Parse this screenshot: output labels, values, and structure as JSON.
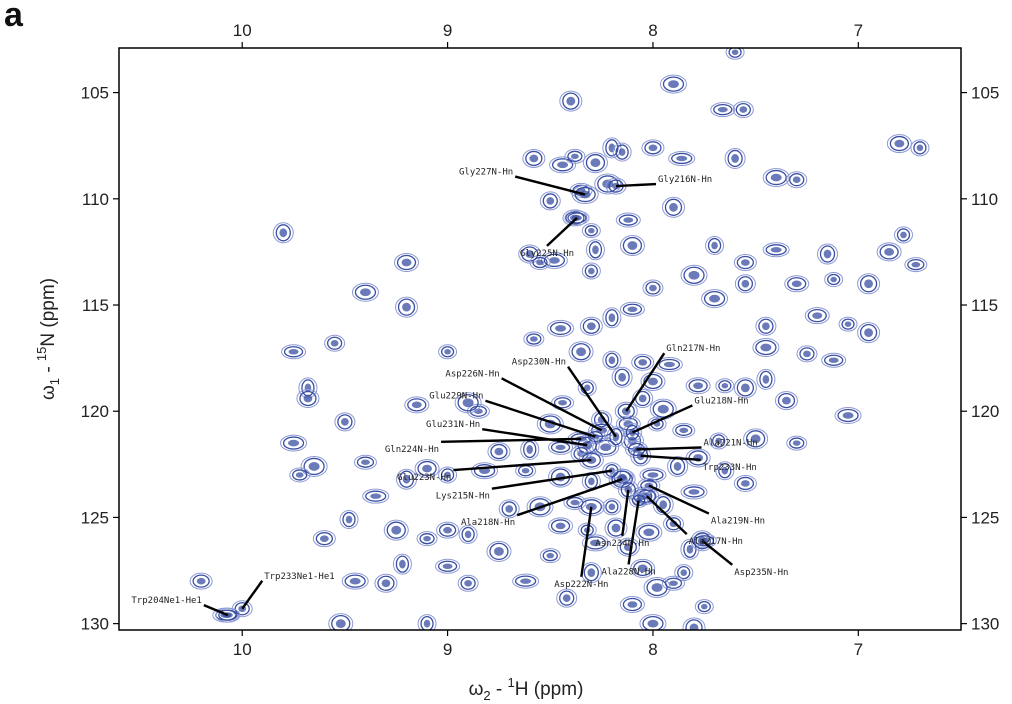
{
  "panel_label": "a",
  "chart_data": {
    "type": "scatter",
    "subtype": "2D NMR contour spectrum (1H-15N HSQC)",
    "x_axis": {
      "label_main": "ω",
      "label_sub": "2",
      "label_mid": " - ",
      "label_sup": "1",
      "label_end": "H  (ppm)",
      "range": [
        10.6,
        6.5
      ],
      "ticks": [
        10,
        9,
        8,
        7
      ],
      "tick_labels": [
        "10",
        "9",
        "8",
        "7"
      ]
    },
    "y_axis": {
      "label_main": "ω",
      "label_sub": "1",
      "label_mid": " - ",
      "label_sup": "15",
      "label_end": "N  (ppm)",
      "range": [
        102.9,
        130.3
      ],
      "ticks": [
        105,
        110,
        115,
        120,
        125,
        130
      ],
      "tick_labels": [
        "105",
        "110",
        "115",
        "120",
        "125",
        "130"
      ]
    },
    "colors": {
      "contour": "#3a4fa3",
      "contour_light": "#8d9ad3",
      "axis": "#000000",
      "leader": "#000000"
    },
    "labeled_peaks": [
      {
        "label": "Gly227N-Hn",
        "x": 8.33,
        "y": 109.8
      },
      {
        "label": "Gly216N-Hn",
        "x": 8.18,
        "y": 109.4
      },
      {
        "label": "Gly225N-Hn",
        "x": 8.37,
        "y": 110.9
      },
      {
        "label": "Asp230N-Hn",
        "x": 8.18,
        "y": 121.2
      },
      {
        "label": "Gln217N-Hn",
        "x": 8.13,
        "y": 120.0
      },
      {
        "label": "Asp226N-Hn",
        "x": 8.25,
        "y": 120.9
      },
      {
        "label": "Glu229N-Hn",
        "x": 8.28,
        "y": 121.2
      },
      {
        "label": "Glu231N-Hn",
        "x": 8.32,
        "y": 121.6
      },
      {
        "label": "Glu218N-Hn",
        "x": 8.1,
        "y": 121.0
      },
      {
        "label": "Ala221N-Hn",
        "x": 8.08,
        "y": 121.8
      },
      {
        "label": "Gln224N-Hn",
        "x": 8.35,
        "y": 121.3
      },
      {
        "label": "Trp233N-Hn",
        "x": 8.06,
        "y": 122.1
      },
      {
        "label": "Glu223N-Hn",
        "x": 8.3,
        "y": 122.3
      },
      {
        "label": "Lys215N-Hn",
        "x": 8.2,
        "y": 122.8
      },
      {
        "label": "Ala219N-Hn",
        "x": 8.02,
        "y": 123.5
      },
      {
        "label": "Ala218N-Hn",
        "x": 8.15,
        "y": 123.2
      },
      {
        "label": "Asn234N-Hn",
        "x": 8.12,
        "y": 123.7
      },
      {
        "label": "Ala217N-Hn",
        "x": 8.03,
        "y": 124.0
      },
      {
        "label": "Ala228N-Hn",
        "x": 8.07,
        "y": 124.2
      },
      {
        "label": "Asp235N-Hn",
        "x": 7.76,
        "y": 126.1
      },
      {
        "label": "Asp222N-Hn",
        "x": 8.3,
        "y": 124.5
      },
      {
        "label": "Trp233Ne1-He1",
        "x": 10.0,
        "y": 129.3
      },
      {
        "label": "Trp204Ne1-He1",
        "x": 10.07,
        "y": 129.6
      }
    ],
    "peaks": [
      [
        7.6,
        103.1
      ],
      [
        8.4,
        105.4
      ],
      [
        7.9,
        104.6
      ],
      [
        7.56,
        105.8
      ],
      [
        7.66,
        105.8
      ],
      [
        8.2,
        107.6
      ],
      [
        8.58,
        108.1
      ],
      [
        8.44,
        108.4
      ],
      [
        8.38,
        108.0
      ],
      [
        8.28,
        108.3
      ],
      [
        8.15,
        107.8
      ],
      [
        8.0,
        107.6
      ],
      [
        7.86,
        108.1
      ],
      [
        7.6,
        108.1
      ],
      [
        6.8,
        107.4
      ],
      [
        6.7,
        107.6
      ],
      [
        8.35,
        109.6
      ],
      [
        8.22,
        109.3
      ],
      [
        8.5,
        110.1
      ],
      [
        8.38,
        110.9
      ],
      [
        8.3,
        111.5
      ],
      [
        7.9,
        110.4
      ],
      [
        7.4,
        109.0
      ],
      [
        7.3,
        109.1
      ],
      [
        8.12,
        111.0
      ],
      [
        8.28,
        112.4
      ],
      [
        8.6,
        112.6
      ],
      [
        8.48,
        112.9
      ],
      [
        8.55,
        113.0
      ],
      [
        8.1,
        112.2
      ],
      [
        7.7,
        112.2
      ],
      [
        7.55,
        113.0
      ],
      [
        7.4,
        112.4
      ],
      [
        7.15,
        112.6
      ],
      [
        6.85,
        112.5
      ],
      [
        6.78,
        111.7
      ],
      [
        6.72,
        113.1
      ],
      [
        7.8,
        113.6
      ],
      [
        7.55,
        114.0
      ],
      [
        7.3,
        114.0
      ],
      [
        7.12,
        113.8
      ],
      [
        6.95,
        114.0
      ],
      [
        7.7,
        114.7
      ],
      [
        8.0,
        114.2
      ],
      [
        8.1,
        115.2
      ],
      [
        8.2,
        115.6
      ],
      [
        8.3,
        116.0
      ],
      [
        8.45,
        116.1
      ],
      [
        8.58,
        116.6
      ],
      [
        8.35,
        117.2
      ],
      [
        8.2,
        117.6
      ],
      [
        8.05,
        117.7
      ],
      [
        7.92,
        117.8
      ],
      [
        8.15,
        118.4
      ],
      [
        8.0,
        118.6
      ],
      [
        8.32,
        118.9
      ],
      [
        8.44,
        119.6
      ],
      [
        8.5,
        120.6
      ],
      [
        8.25,
        120.4
      ],
      [
        8.12,
        120.6
      ],
      [
        7.98,
        120.6
      ],
      [
        8.1,
        121.4
      ],
      [
        8.23,
        121.7
      ],
      [
        8.35,
        122.0
      ],
      [
        8.45,
        121.7
      ],
      [
        8.6,
        121.8
      ],
      [
        8.75,
        121.9
      ],
      [
        8.82,
        122.8
      ],
      [
        8.62,
        122.8
      ],
      [
        8.45,
        123.1
      ],
      [
        8.3,
        123.3
      ],
      [
        8.15,
        123.1
      ],
      [
        8.0,
        123.0
      ],
      [
        7.88,
        122.6
      ],
      [
        7.78,
        122.2
      ],
      [
        7.68,
        121.4
      ],
      [
        7.85,
        120.9
      ],
      [
        7.95,
        119.9
      ],
      [
        8.05,
        119.4
      ],
      [
        7.78,
        118.8
      ],
      [
        7.65,
        118.8
      ],
      [
        7.55,
        118.9
      ],
      [
        7.45,
        117.0
      ],
      [
        7.25,
        117.3
      ],
      [
        7.12,
        117.6
      ],
      [
        7.45,
        118.5
      ],
      [
        7.35,
        119.5
      ],
      [
        7.05,
        120.2
      ],
      [
        7.3,
        121.5
      ],
      [
        7.5,
        121.3
      ],
      [
        7.65,
        122.8
      ],
      [
        7.55,
        123.4
      ],
      [
        7.8,
        123.8
      ],
      [
        7.95,
        124.4
      ],
      [
        8.05,
        124.0
      ],
      [
        8.2,
        124.5
      ],
      [
        8.38,
        124.3
      ],
      [
        8.55,
        124.5
      ],
      [
        8.7,
        124.6
      ],
      [
        8.45,
        125.4
      ],
      [
        8.32,
        125.6
      ],
      [
        8.18,
        125.5
      ],
      [
        8.02,
        125.7
      ],
      [
        7.9,
        125.3
      ],
      [
        7.75,
        126.1
      ],
      [
        7.82,
        126.5
      ],
      [
        8.12,
        126.4
      ],
      [
        8.28,
        126.2
      ],
      [
        8.5,
        126.8
      ],
      [
        8.75,
        126.6
      ],
      [
        8.9,
        125.8
      ],
      [
        9.0,
        125.6
      ],
      [
        8.62,
        128.0
      ],
      [
        8.3,
        127.6
      ],
      [
        8.05,
        127.4
      ],
      [
        7.85,
        127.6
      ],
      [
        7.9,
        128.1
      ],
      [
        7.98,
        128.3
      ],
      [
        8.42,
        128.8
      ],
      [
        8.1,
        129.1
      ],
      [
        7.75,
        129.2
      ],
      [
        7.8,
        130.2
      ],
      [
        8.0,
        130.0
      ],
      [
        8.9,
        128.1
      ],
      [
        9.0,
        127.3
      ],
      [
        9.22,
        127.2
      ],
      [
        9.3,
        128.1
      ],
      [
        9.45,
        128.0
      ],
      [
        9.1,
        126.0
      ],
      [
        9.25,
        125.6
      ],
      [
        9.48,
        125.1
      ],
      [
        9.6,
        126.0
      ],
      [
        9.35,
        124.0
      ],
      [
        9.2,
        123.2
      ],
      [
        9.1,
        122.7
      ],
      [
        9.0,
        123.0
      ],
      [
        9.4,
        122.4
      ],
      [
        9.65,
        122.6
      ],
      [
        9.5,
        120.5
      ],
      [
        9.15,
        119.7
      ],
      [
        9.0,
        117.2
      ],
      [
        9.2,
        115.1
      ],
      [
        9.4,
        114.4
      ],
      [
        9.55,
        116.8
      ],
      [
        9.75,
        117.2
      ],
      [
        9.68,
        118.9
      ],
      [
        9.68,
        119.4
      ],
      [
        9.75,
        121.5
      ],
      [
        9.72,
        123.0
      ],
      [
        9.52,
        130.0
      ],
      [
        9.1,
        130.0
      ],
      [
        10.2,
        128.0
      ],
      [
        10.08,
        129.6
      ],
      [
        9.8,
        111.6
      ],
      [
        9.2,
        113.0
      ],
      [
        8.3,
        113.4
      ],
      [
        8.85,
        120.0
      ],
      [
        8.9,
        119.6
      ],
      [
        7.45,
        116.0
      ],
      [
        7.2,
        115.5
      ],
      [
        7.05,
        115.9
      ],
      [
        6.95,
        116.3
      ]
    ]
  }
}
